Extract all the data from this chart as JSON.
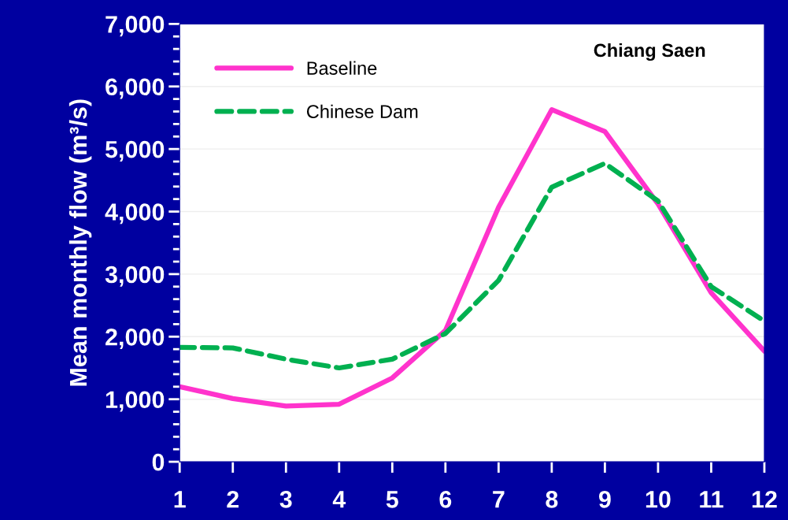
{
  "chart_data": {
    "type": "line",
    "title": "Chiang Saen",
    "ylabel": "Mean monthly flow (m³/s)",
    "x": [
      1,
      2,
      3,
      4,
      5,
      6,
      7,
      8,
      9,
      10,
      11,
      12
    ],
    "series": [
      {
        "name": "Baseline",
        "color": "#ff33cc",
        "line_style": "solid",
        "values": [
          1200,
          1010,
          890,
          920,
          1340,
          2100,
          4070,
          5630,
          5280,
          4120,
          2700,
          1770
        ]
      },
      {
        "name": "Chinese Dam",
        "color": "#00b050",
        "line_style": "dashed",
        "values": [
          1830,
          1820,
          1640,
          1500,
          1640,
          2050,
          2900,
          4390,
          4770,
          4170,
          2800,
          2250
        ]
      }
    ],
    "xlim": [
      1,
      12
    ],
    "xticks": [
      1,
      2,
      3,
      4,
      5,
      6,
      7,
      8,
      9,
      10,
      11,
      12
    ],
    "ylim": [
      0,
      7000
    ],
    "yticks": [
      {
        "value": 0,
        "label": "0"
      },
      {
        "value": 1000,
        "label": "1,000"
      },
      {
        "value": 2000,
        "label": "2,000"
      },
      {
        "value": 3000,
        "label": "3,000"
      },
      {
        "value": 4000,
        "label": "4,000"
      },
      {
        "value": 5000,
        "label": "5,000"
      },
      {
        "value": 6000,
        "label": "6,000"
      },
      {
        "value": 7000,
        "label": "7,000"
      }
    ],
    "grid": "y",
    "legend": "top left",
    "marker": "none"
  }
}
